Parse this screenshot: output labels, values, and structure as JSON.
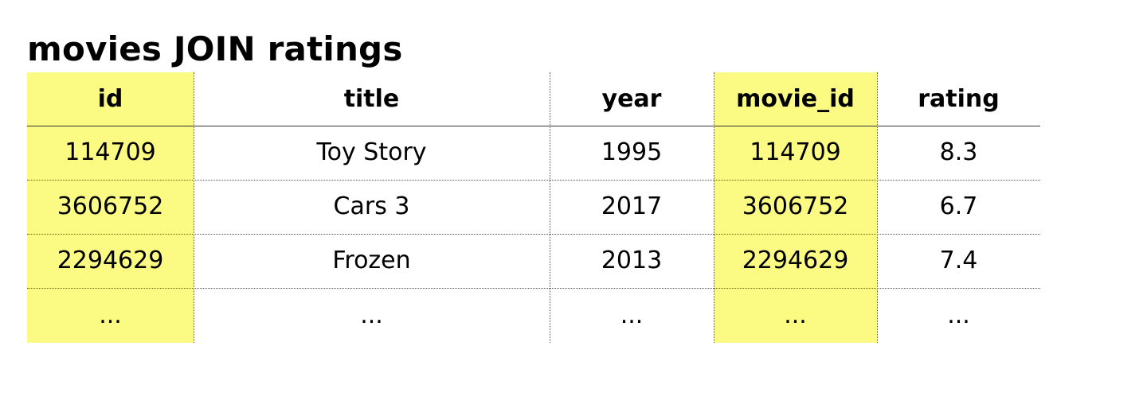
{
  "title": "movies JOIN ratings",
  "highlight_color": "#fbfa83",
  "table": {
    "headers": [
      "id",
      "title",
      "year",
      "movie_id",
      "rating"
    ],
    "highlighted_columns": [
      "id",
      "movie_id"
    ],
    "rows": [
      [
        "114709",
        "Toy Story",
        "1995",
        "114709",
        "8.3"
      ],
      [
        "3606752",
        "Cars 3",
        "2017",
        "3606752",
        "6.7"
      ],
      [
        "2294629",
        "Frozen",
        "2013",
        "2294629",
        "7.4"
      ],
      [
        "...",
        "...",
        "...",
        "...",
        "..."
      ]
    ]
  }
}
